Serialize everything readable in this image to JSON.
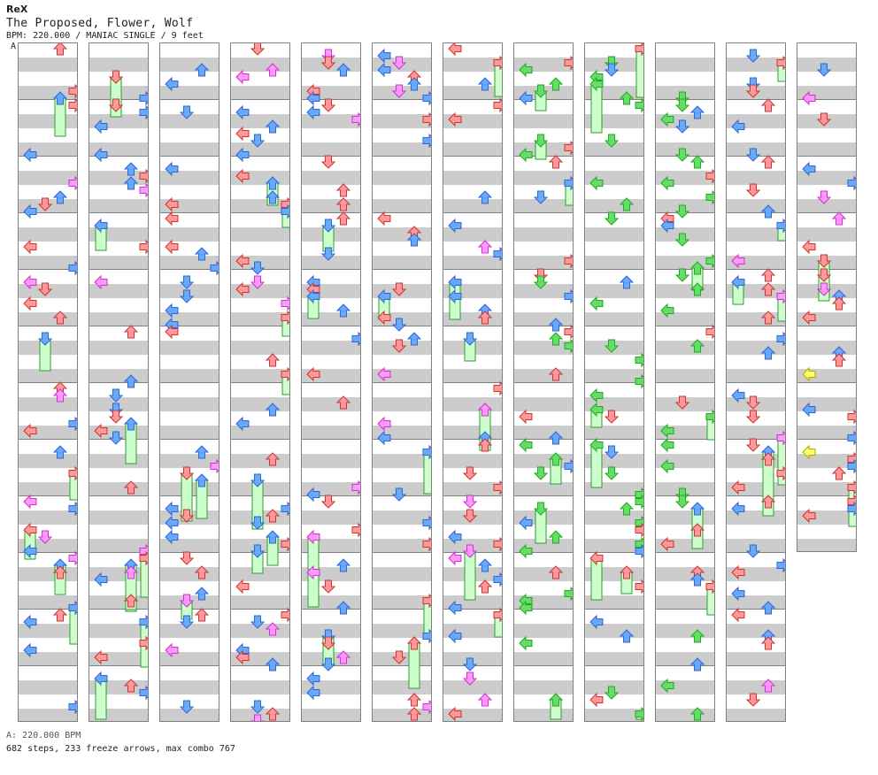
{
  "header": {
    "artist": "ReX",
    "song": "The Proposed, Flower, Wolf",
    "info": "BPM: 220.000 / MANIAC SINGLE / 9 feet"
  },
  "bpm_marker": {
    "label": "A"
  },
  "footer": {
    "bpm": "A: 220.000 BPM",
    "stats": "682 steps, 233 freeze arrows, max combo 767"
  },
  "chart": {
    "mode": "MANIAC SINGLE",
    "columns": 12,
    "measures_per_column": 12,
    "last_column_measures": 9,
    "lanes": [
      "left",
      "down",
      "up",
      "right"
    ],
    "colors": {
      "quarter": "#ff9999",
      "eighth": "#66aaff",
      "sixteenth": "#ff99ff",
      "other": "#66dd66",
      "freeze": "#ccffcc",
      "freeze_border": "#339933",
      "yellow": "#ffff66"
    }
  }
}
